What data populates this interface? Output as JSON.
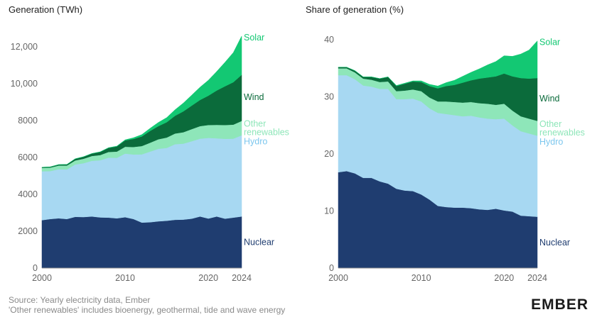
{
  "source": "Source: Yearly electricity data, Ember",
  "note": "'Other renewables' includes bioenergy, geothermal, tide and wave energy",
  "logo": "EMBER",
  "colors": {
    "nuclear": "#1f3d70",
    "hydro": "#a7d8f2",
    "other": "#8ee6b9",
    "wind": "#0b6b3b",
    "solar": "#13c873"
  },
  "chart_data": [
    {
      "type": "area",
      "stacked": true,
      "title": "Generation (TWh)",
      "x": [
        2000,
        2001,
        2002,
        2003,
        2004,
        2005,
        2006,
        2007,
        2008,
        2009,
        2010,
        2011,
        2012,
        2013,
        2014,
        2015,
        2016,
        2017,
        2018,
        2019,
        2020,
        2021,
        2022,
        2023,
        2024
      ],
      "xticks": [
        "2000",
        "2010",
        "2020",
        "2024"
      ],
      "yticks": [
        "0",
        "2000",
        "4000",
        "6000",
        "8000",
        "10,000",
        "12,000"
      ],
      "ylim": [
        0,
        13000
      ],
      "series": [
        {
          "name": "Nuclear",
          "values": [
            2600,
            2660,
            2700,
            2660,
            2780,
            2770,
            2800,
            2750,
            2740,
            2700,
            2760,
            2660,
            2470,
            2490,
            2540,
            2570,
            2620,
            2630,
            2680,
            2800,
            2690,
            2800,
            2680,
            2740,
            2800
          ]
        },
        {
          "name": "Hydro",
          "values": [
            2650,
            2600,
            2660,
            2690,
            2840,
            2920,
            3020,
            3100,
            3250,
            3280,
            3450,
            3500,
            3700,
            3830,
            3930,
            3950,
            4100,
            4120,
            4200,
            4220,
            4370,
            4240,
            4330,
            4280,
            4400
          ]
        },
        {
          "name": "Other renewables",
          "values": [
            190,
            190,
            200,
            210,
            220,
            240,
            260,
            280,
            310,
            340,
            370,
            410,
            450,
            480,
            520,
            560,
            580,
            620,
            660,
            680,
            700,
            730,
            750,
            760,
            780
          ]
        },
        {
          "name": "Wind",
          "values": [
            30,
            40,
            50,
            60,
            85,
            105,
            130,
            170,
            220,
            275,
            345,
            435,
            520,
            640,
            710,
            830,
            960,
            1130,
            1270,
            1420,
            1590,
            1860,
            2100,
            2300,
            2500
          ]
        },
        {
          "name": "Solar",
          "values": [
            1,
            2,
            3,
            4,
            5,
            6,
            7,
            8,
            12,
            21,
            32,
            64,
            100,
            140,
            200,
            250,
            330,
            450,
            570,
            690,
            840,
            1030,
            1300,
            1610,
            2100
          ]
        }
      ],
      "labels": [
        "Solar",
        "Wind",
        "Other",
        "renewables",
        "Hydro",
        "Nuclear"
      ]
    },
    {
      "type": "area",
      "stacked": true,
      "title": "Share of generation (%)",
      "x": [
        2000,
        2001,
        2002,
        2003,
        2004,
        2005,
        2006,
        2007,
        2008,
        2009,
        2010,
        2011,
        2012,
        2013,
        2014,
        2015,
        2016,
        2017,
        2018,
        2019,
        2020,
        2021,
        2022,
        2023,
        2024
      ],
      "xticks": [
        "2000",
        "2010",
        "2020",
        "2024"
      ],
      "yticks": [
        "0",
        "10",
        "20",
        "30",
        "40"
      ],
      "ylim": [
        0,
        42
      ],
      "series": [
        {
          "name": "Nuclear",
          "values": [
            16.8,
            17.0,
            16.6,
            15.8,
            15.8,
            15.2,
            14.8,
            13.9,
            13.6,
            13.5,
            12.9,
            12.0,
            10.9,
            10.7,
            10.6,
            10.6,
            10.5,
            10.3,
            10.2,
            10.4,
            10.1,
            9.9,
            9.2,
            9.1,
            9.0
          ]
        },
        {
          "name": "Hydro",
          "values": [
            17.0,
            16.8,
            16.5,
            16.2,
            16.0,
            16.2,
            16.6,
            15.7,
            16.0,
            16.2,
            16.3,
            16.0,
            16.3,
            16.3,
            16.2,
            16.0,
            16.2,
            16.1,
            16.0,
            15.7,
            16.1,
            15.1,
            14.8,
            14.5,
            14.2
          ]
        },
        {
          "name": "Other renewables",
          "values": [
            1.2,
            1.2,
            1.2,
            1.2,
            1.2,
            1.2,
            1.3,
            1.4,
            1.5,
            1.6,
            1.8,
            1.9,
            2.0,
            2.2,
            2.3,
            2.4,
            2.4,
            2.5,
            2.6,
            2.5,
            2.6,
            2.6,
            2.6,
            2.6,
            2.6
          ]
        },
        {
          "name": "Wind",
          "values": [
            0.2,
            0.2,
            0.3,
            0.3,
            0.5,
            0.6,
            0.8,
            0.9,
            1.2,
            1.4,
            1.6,
            2.0,
            2.3,
            2.7,
            3.0,
            3.5,
            3.8,
            4.3,
            4.6,
            5.0,
            5.3,
            6.0,
            6.7,
            7.0,
            7.5
          ]
        },
        {
          "name": "Solar",
          "values": [
            0.0,
            0.0,
            0.0,
            0.0,
            0.0,
            0.0,
            0.0,
            0.1,
            0.1,
            0.1,
            0.2,
            0.3,
            0.4,
            0.6,
            0.8,
            1.1,
            1.4,
            1.7,
            2.2,
            2.6,
            3.1,
            3.5,
            4.2,
            5.0,
            6.5
          ]
        }
      ],
      "labels": [
        "Solar",
        "Wind",
        "Other",
        "renewables",
        "Hydro",
        "Nuclear"
      ]
    }
  ]
}
